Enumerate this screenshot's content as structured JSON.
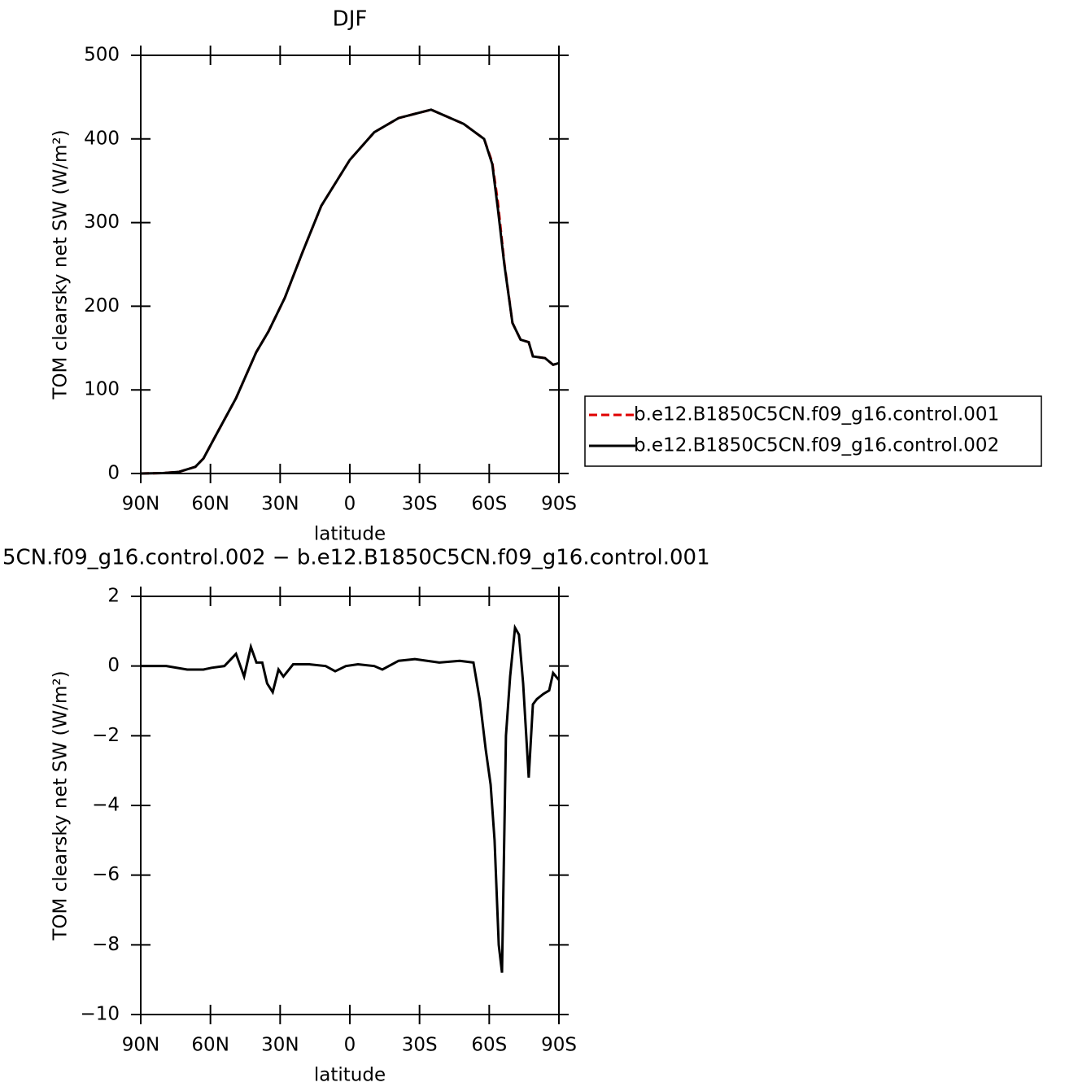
{
  "chart_data": [
    {
      "type": "line",
      "title": "DJF",
      "x_label": "latitude",
      "y_label": "TOM clearsky net SW (W/m²)",
      "x": [
        90,
        80.5,
        73.5,
        66.5,
        63,
        57.8,
        49,
        40.3,
        35,
        28,
        20.3,
        12.3,
        0,
        -10.5,
        -21,
        -35,
        -49,
        -57.8,
        -61.3,
        -63.7,
        -66.5,
        -70,
        -73.5,
        -77,
        -78.8,
        -84,
        -87.5,
        -90
      ],
      "series": [
        {
          "name": "b.e12.B1850C5CN.f09_g16.control.001",
          "color": "#e00000",
          "style": "dashed",
          "values": [
            0,
            0.5,
            2,
            8,
            18,
            45,
            90,
            145,
            170,
            210,
            265,
            320,
            375,
            408,
            425,
            435,
            418,
            400,
            372,
            325,
            252,
            180,
            160,
            157,
            140,
            138,
            130,
            132
          ]
        },
        {
          "name": "b.e12.B1850C5CN.f09_g16.control.002",
          "color": "#000000",
          "style": "solid",
          "values": [
            0,
            0.5,
            2,
            8,
            18,
            45,
            90,
            145,
            170,
            210,
            265,
            320,
            375,
            408,
            425,
            435,
            418,
            400,
            370,
            317,
            250,
            180,
            160,
            157,
            140,
            138,
            130,
            132
          ]
        }
      ],
      "xlim": [
        90,
        -90
      ],
      "ylim": [
        0,
        500
      ],
      "xticks": [
        {
          "value": 90,
          "label": "90N"
        },
        {
          "value": 60,
          "label": "60N"
        },
        {
          "value": 30,
          "label": "30N"
        },
        0,
        {
          "value": -30,
          "label": "30S"
        },
        {
          "value": -60,
          "label": "60S"
        },
        {
          "value": -90,
          "label": "90S"
        }
      ],
      "yticks": [
        0,
        100,
        200,
        300,
        400,
        500
      ],
      "legend": "right"
    },
    {
      "type": "line",
      "title": "5CN.f09_g16.control.002 − b.e12.B1850C5CN.f09_g16.control.001",
      "x_label": "latitude",
      "y_label": "TOM clearsky net SW (W/m²)",
      "x": [
        90,
        79,
        70,
        63,
        59.5,
        54,
        49,
        45.5,
        42.6,
        40.2,
        37.7,
        35.6,
        33.2,
        30.7,
        28.6,
        24.4,
        17.4,
        10.4,
        6.3,
        1.7,
        -3.5,
        -10.5,
        -14,
        -21,
        -28,
        -38.5,
        -47.3,
        -53.2,
        -56,
        -58.5,
        -60.6,
        -62.3,
        -64.1,
        -65.5,
        -67.2,
        -69,
        -71.1,
        -72.8,
        -74.6,
        -77,
        -78.8,
        -80.5,
        -83.3,
        -85.8,
        -87.5,
        -90
      ],
      "series": [
        {
          "color": "#000000",
          "style": "solid",
          "values": [
            0,
            0,
            -0.1,
            -0.1,
            -0.05,
            0,
            0.35,
            -0.3,
            0.55,
            0.1,
            0.1,
            -0.5,
            -0.75,
            -0.1,
            -0.3,
            0.05,
            0.05,
            0,
            -0.15,
            0,
            0.05,
            0,
            -0.1,
            0.15,
            0.2,
            0.1,
            0.15,
            0.1,
            -1,
            -2.4,
            -3.4,
            -5,
            -8,
            -8.8,
            -2,
            -0.3,
            1.1,
            0.9,
            -0.5,
            -3.2,
            -1.1,
            -0.95,
            -0.8,
            -0.7,
            -0.2,
            -0.4
          ]
        }
      ],
      "xlim": [
        90,
        -90
      ],
      "ylim": [
        -10,
        2
      ],
      "xticks": [
        {
          "value": 90,
          "label": "90N"
        },
        {
          "value": 60,
          "label": "60N"
        },
        {
          "value": 30,
          "label": "30N"
        },
        0,
        {
          "value": -30,
          "label": "30S"
        },
        {
          "value": -60,
          "label": "60S"
        },
        {
          "value": -90,
          "label": "90S"
        }
      ],
      "yticks": [
        {
          "value": -10,
          "label": "−10"
        },
        {
          "value": -8,
          "label": "−8"
        },
        {
          "value": -6,
          "label": "−6"
        },
        {
          "value": -4,
          "label": "−4"
        },
        {
          "value": -2,
          "label": "−2"
        },
        0,
        2
      ]
    }
  ]
}
